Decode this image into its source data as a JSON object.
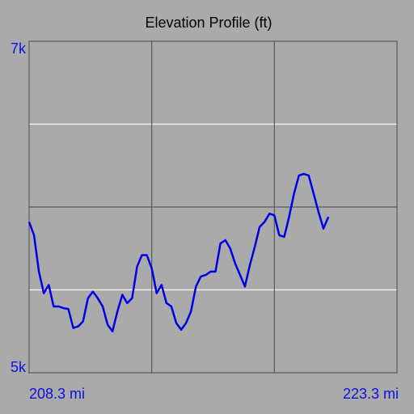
{
  "chart_data": {
    "type": "line",
    "title": "Elevation Profile (ft)",
    "x": [
      208.3,
      208.5,
      208.7,
      208.9,
      209.1,
      209.3,
      209.5,
      209.7,
      209.9,
      210.1,
      210.3,
      210.5,
      210.7,
      210.9,
      211.1,
      211.3,
      211.5,
      211.7,
      211.9,
      212.1,
      212.3,
      212.5,
      212.7,
      212.9,
      213.1,
      213.3,
      213.5,
      213.7,
      213.9,
      214.1,
      214.3,
      214.5,
      214.7,
      214.9,
      215.1,
      215.3,
      215.5,
      215.7,
      215.9,
      216.1,
      216.3,
      216.5,
      216.7,
      216.9,
      217.1,
      217.3,
      217.5,
      217.7,
      217.9,
      218.1,
      218.3,
      218.5,
      218.7,
      218.9,
      219.1,
      219.3,
      219.5,
      219.7,
      219.9,
      220.1,
      220.3,
      220.5
    ],
    "series": [
      {
        "color": "#0000e6",
        "values": [
          5910,
          5830,
          5610,
          5480,
          5530,
          5400,
          5400,
          5390,
          5385,
          5270,
          5280,
          5310,
          5450,
          5490,
          5450,
          5400,
          5290,
          5250,
          5370,
          5470,
          5420,
          5450,
          5640,
          5710,
          5710,
          5630,
          5480,
          5530,
          5420,
          5400,
          5300,
          5260,
          5300,
          5370,
          5520,
          5580,
          5590,
          5610,
          5610,
          5780,
          5800,
          5750,
          5660,
          5590,
          5520,
          5650,
          5760,
          5880,
          5910,
          5960,
          5950,
          5830,
          5820,
          5940,
          6080,
          6190,
          6200,
          6190,
          6080,
          5970,
          5870,
          5940
        ]
      }
    ],
    "xlim": [
      208.3,
      223.3
    ],
    "ylim": [
      5000,
      7000
    ],
    "xticks": [
      {
        "value": 208.3,
        "label": "208.3 mi"
      },
      {
        "value": 223.3,
        "label": "223.3 mi"
      }
    ],
    "yticks": [
      {
        "value": 5000,
        "label": "5k"
      },
      {
        "value": 7000,
        "label": "7k"
      }
    ],
    "xgrid": [
      {
        "value": 213.3,
        "color": "#5a5a5a"
      },
      {
        "value": 218.3,
        "color": "#5a5a5a"
      }
    ],
    "ygrid": [
      {
        "value": 5500,
        "color": "#ffffff"
      },
      {
        "value": 6000,
        "color": "#5a5a5a"
      },
      {
        "value": 6500,
        "color": "#ffffff"
      }
    ]
  }
}
